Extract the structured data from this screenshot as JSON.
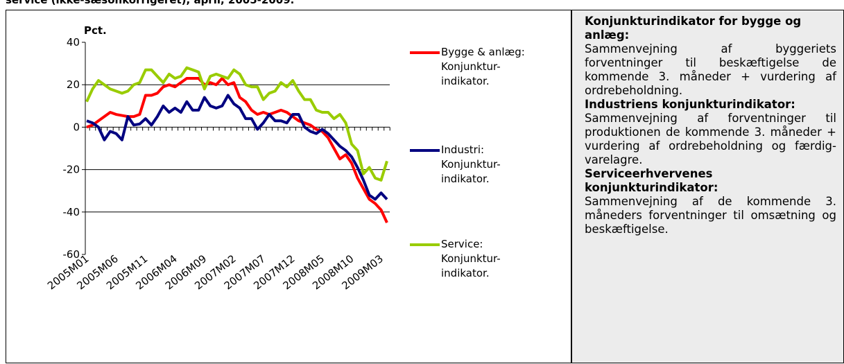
{
  "chart_data": {
    "type": "line",
    "title": "service (ikke-sæsonkorrigeret), april, 2005-2009.",
    "y_label": "Pct.",
    "categories": [
      "2005M01",
      null,
      null,
      null,
      null,
      "2005M06",
      null,
      null,
      null,
      null,
      "2005M11",
      null,
      null,
      null,
      null,
      "2006M04",
      null,
      null,
      null,
      null,
      "2006M09",
      null,
      null,
      null,
      null,
      "2007M02",
      null,
      null,
      null,
      null,
      "2007M07",
      null,
      null,
      null,
      null,
      "2007M12",
      null,
      null,
      null,
      null,
      "2008M05",
      null,
      null,
      null,
      null,
      "2008M10",
      null,
      null,
      null,
      null,
      "2009M03",
      null
    ],
    "series": [
      {
        "name": "Bygge & anlæg: Konjunktur-indikator.",
        "color": "#ff0000",
        "values": [
          0,
          1,
          3,
          5,
          7,
          6,
          5.5,
          5,
          5,
          6,
          15,
          15,
          16,
          19,
          20,
          19,
          21,
          23,
          23,
          23,
          20,
          21,
          20,
          23,
          20,
          21,
          14,
          12,
          8,
          6,
          7,
          6,
          7,
          8,
          7,
          5,
          3,
          2,
          1,
          -1,
          -2,
          -5,
          -10,
          -15,
          -13,
          -17,
          -24,
          -29,
          -34,
          -36,
          -39,
          -45
        ]
      },
      {
        "name": "Industri: Konjunktur-indikator.",
        "color": "#000080",
        "values": [
          3,
          2,
          0,
          -6,
          -2,
          -3,
          -6,
          5,
          1,
          1.5,
          4,
          1,
          5,
          10,
          7,
          9,
          7,
          12,
          8,
          8,
          14,
          10,
          9,
          10,
          15,
          11,
          9,
          4,
          4,
          -1,
          2,
          6,
          3,
          3,
          2,
          6,
          6,
          0,
          -2,
          -3,
          -1,
          -3,
          -6,
          -9,
          -11,
          -14,
          -19,
          -25,
          -32,
          -34,
          -31,
          -34
        ]
      },
      {
        "name": "Service: Konjunktur-indikator.",
        "color": "#99cc00",
        "values": [
          12,
          18,
          22,
          20,
          18,
          17,
          16,
          17,
          20,
          21,
          27,
          27,
          24,
          21,
          25,
          23,
          24,
          28,
          27,
          26,
          18,
          24,
          25,
          24,
          23,
          27,
          25,
          20,
          19,
          19,
          13,
          16,
          17,
          21,
          19,
          22,
          17,
          13,
          13,
          8,
          7,
          7,
          4,
          6,
          2,
          -8,
          -11,
          -22,
          -19,
          -24,
          -25,
          -16
        ]
      }
    ],
    "ylim": [
      -60,
      40
    ],
    "yticks": [
      -60,
      -40,
      -20,
      0,
      20,
      40
    ],
    "grid": true
  },
  "panel": [
    {
      "heading": "Konjunkturindikator for bygge og anlæg:",
      "text": "Sammenvejning af byggeriets forventninger til beskæftigelse de kommende 3. måneder + vurdering af ordrebeholdning."
    },
    {
      "heading": "Industriens konjunkturindikator:",
      "text": "Sammenvejning af forventninger til produktionen de kommende 3. måneder + vurdering af ordrebeholdning og færdig-varelagre."
    },
    {
      "heading": "Serviceerhvervenes konjunkturindikator:",
      "text": "Sammenvejning af de kommende 3. måneders forventninger til omsætning og beskæftigelse."
    }
  ]
}
